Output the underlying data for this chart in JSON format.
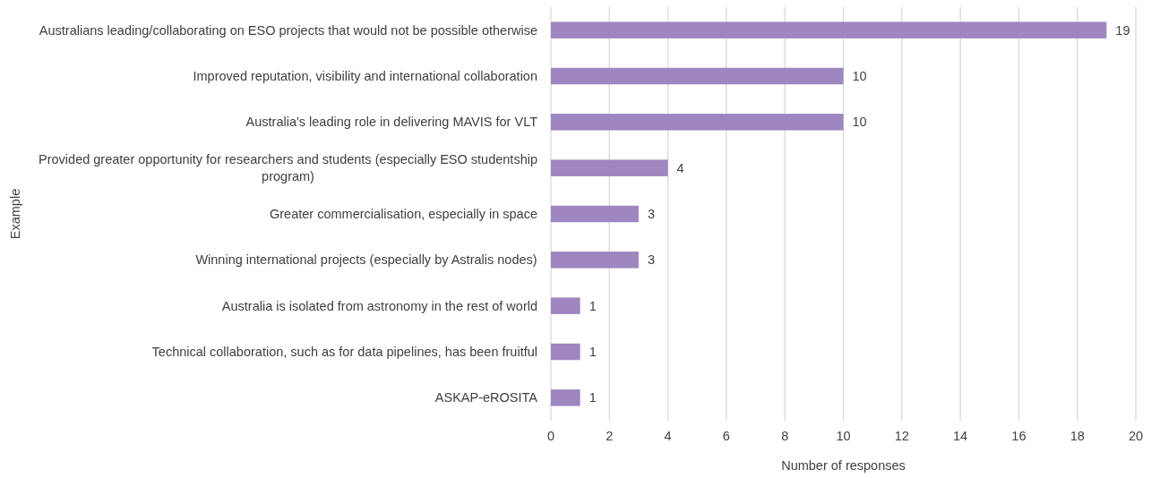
{
  "chart_data": {
    "type": "bar",
    "orientation": "horizontal",
    "xlabel": "Number of responses",
    "ylabel": "Example",
    "categories": [
      "Australians leading/collaborating on ESO projects that would not be possible otherwise",
      "Improved reputation, visibility and international collaboration",
      "Australia's leading role in delivering MAVIS for VLT",
      "Provided greater opportunity for researchers and students (especially ESO studentship program)",
      "Greater commercialisation, especially in space",
      "Winning international projects (especially by Astralis nodes)",
      "Australia is isolated from astronomy in the rest of world",
      "Technical collaboration, such as for data pipelines, has been fruitful",
      "ASKAP-eROSITA"
    ],
    "values": [
      19,
      10,
      10,
      4,
      3,
      3,
      1,
      1,
      1
    ],
    "color": "#9e86c0",
    "data_labels": true,
    "xlim": [
      0,
      20
    ],
    "xticks": [
      0,
      2,
      4,
      6,
      8,
      10,
      12,
      14,
      16,
      18,
      20
    ],
    "grid": "x"
  }
}
